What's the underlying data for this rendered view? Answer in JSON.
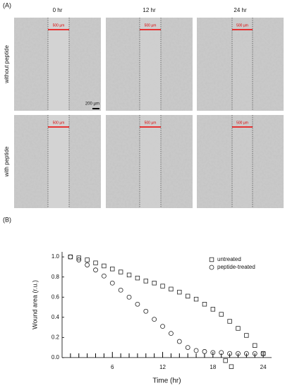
{
  "panel_a": {
    "label": "(A)",
    "columns": [
      "0 hr",
      "12 hr",
      "24 hr"
    ],
    "rows": [
      "without peptide",
      "with peptide"
    ],
    "scale_labels": [
      [
        "500 µm",
        "500 µm",
        "500 µm"
      ],
      [
        "500 µm",
        "500 µm",
        "500 µm"
      ]
    ],
    "scale_bar": "200 µm"
  },
  "chart_data": {
    "type": "scatter",
    "panel_label": "(B)",
    "x_label": "Time (hr)",
    "y_label": "Wound area (r.u.)",
    "xlim": [
      0,
      25
    ],
    "ylim": [
      -0.12,
      1.05
    ],
    "xticks": [
      6,
      12,
      18,
      24
    ],
    "xminor_ticks": [
      1,
      2,
      3,
      4,
      5,
      7,
      8,
      9,
      10,
      11,
      13,
      14,
      15,
      16,
      17,
      19,
      20,
      21,
      22,
      23
    ],
    "yticks": [
      {
        "value": 0,
        "label": "0.0"
      },
      0.2,
      0.4,
      0.6,
      0.8,
      {
        "value": 1,
        "label": "1.0"
      }
    ],
    "legend": "upper right",
    "series": [
      {
        "name": "untreated",
        "color": "#222222",
        "marker": "square",
        "x": [
          1,
          2,
          3,
          4,
          5,
          6,
          7,
          8,
          9,
          10,
          11,
          12,
          13,
          14,
          15,
          16,
          17,
          18,
          19,
          20,
          21,
          22,
          23,
          24,
          19.5,
          20.2
        ],
        "values": [
          1.0,
          0.99,
          0.97,
          0.94,
          0.91,
          0.88,
          0.85,
          0.82,
          0.79,
          0.76,
          0.74,
          0.71,
          0.68,
          0.65,
          0.61,
          0.58,
          0.53,
          0.48,
          0.43,
          0.36,
          0.29,
          0.22,
          0.12,
          0.04,
          -0.03,
          -0.09
        ]
      },
      {
        "name": "peptide-treated",
        "color": "#222222",
        "marker": "circle",
        "x": [
          1,
          2,
          3,
          4,
          5,
          6,
          7,
          8,
          9,
          10,
          11,
          12,
          13,
          14,
          15,
          16,
          17,
          18,
          19,
          20,
          21,
          22,
          23,
          24
        ],
        "values": [
          1.0,
          0.97,
          0.92,
          0.87,
          0.81,
          0.74,
          0.67,
          0.6,
          0.53,
          0.46,
          0.38,
          0.31,
          0.24,
          0.16,
          0.1,
          0.07,
          0.06,
          0.05,
          0.05,
          0.04,
          0.04,
          0.04,
          0.04,
          0.04
        ]
      }
    ]
  }
}
